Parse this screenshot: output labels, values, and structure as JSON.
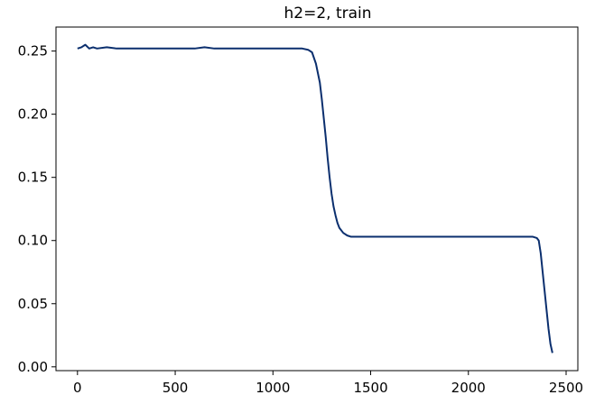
{
  "chart_data": {
    "type": "line",
    "title": "h2=2, train",
    "xlabel": "",
    "ylabel": "",
    "xlim": [
      -110,
      2560
    ],
    "ylim": [
      -0.003,
      0.269
    ],
    "x_ticks": [
      0,
      500,
      1000,
      1500,
      2000,
      2500
    ],
    "x_tick_labels": [
      "0",
      "500",
      "1000",
      "1500",
      "2000",
      "2500"
    ],
    "y_ticks": [
      0.0,
      0.05,
      0.1,
      0.15,
      0.2,
      0.25
    ],
    "y_tick_labels": [
      "0.00",
      "0.05",
      "0.10",
      "0.15",
      "0.20",
      "0.25"
    ],
    "grid": false,
    "legend": "none",
    "series": [
      {
        "color": "#0b2f6e",
        "x": [
          0,
          20,
          40,
          60,
          80,
          100,
          150,
          200,
          300,
          400,
          500,
          600,
          650,
          700,
          800,
          900,
          1000,
          1100,
          1150,
          1180,
          1200,
          1220,
          1240,
          1250,
          1260,
          1270,
          1280,
          1290,
          1300,
          1310,
          1320,
          1330,
          1340,
          1360,
          1380,
          1400,
          1450,
          1500,
          1600,
          1700,
          1800,
          1900,
          2000,
          2100,
          2200,
          2250,
          2300,
          2330,
          2350,
          2360,
          2370,
          2380,
          2390,
          2400,
          2410,
          2420,
          2430
        ],
        "y": [
          0.252,
          0.253,
          0.255,
          0.252,
          0.253,
          0.252,
          0.253,
          0.252,
          0.252,
          0.252,
          0.252,
          0.252,
          0.253,
          0.252,
          0.252,
          0.252,
          0.252,
          0.252,
          0.252,
          0.251,
          0.249,
          0.24,
          0.225,
          0.212,
          0.197,
          0.182,
          0.165,
          0.15,
          0.137,
          0.127,
          0.12,
          0.114,
          0.11,
          0.106,
          0.104,
          0.103,
          0.103,
          0.103,
          0.103,
          0.103,
          0.103,
          0.103,
          0.103,
          0.103,
          0.103,
          0.103,
          0.103,
          0.103,
          0.102,
          0.1,
          0.09,
          0.075,
          0.06,
          0.045,
          0.03,
          0.018,
          0.011
        ]
      }
    ]
  }
}
